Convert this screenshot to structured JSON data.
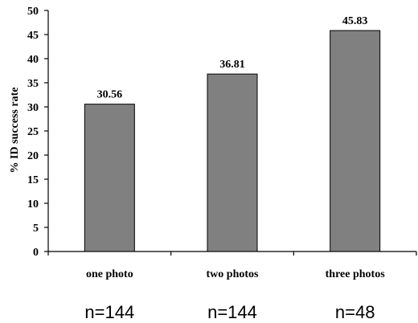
{
  "chart_data": {
    "type": "bar",
    "categories": [
      "one photo",
      "two photos",
      "three photos"
    ],
    "values": [
      30.56,
      36.81,
      45.83
    ],
    "data_labels": [
      "30.56",
      "36.81",
      "45.83"
    ],
    "sample_sizes": [
      "n=144",
      "n=144",
      "n=48"
    ],
    "ylabel": "% ID success rate",
    "xlabel": "",
    "ylim": [
      0,
      50
    ],
    "yticks": [
      0,
      5,
      10,
      15,
      20,
      25,
      30,
      35,
      40,
      45,
      50
    ],
    "grid": false,
    "bar_color": "#808080",
    "bar_edge_color": "#000000"
  }
}
